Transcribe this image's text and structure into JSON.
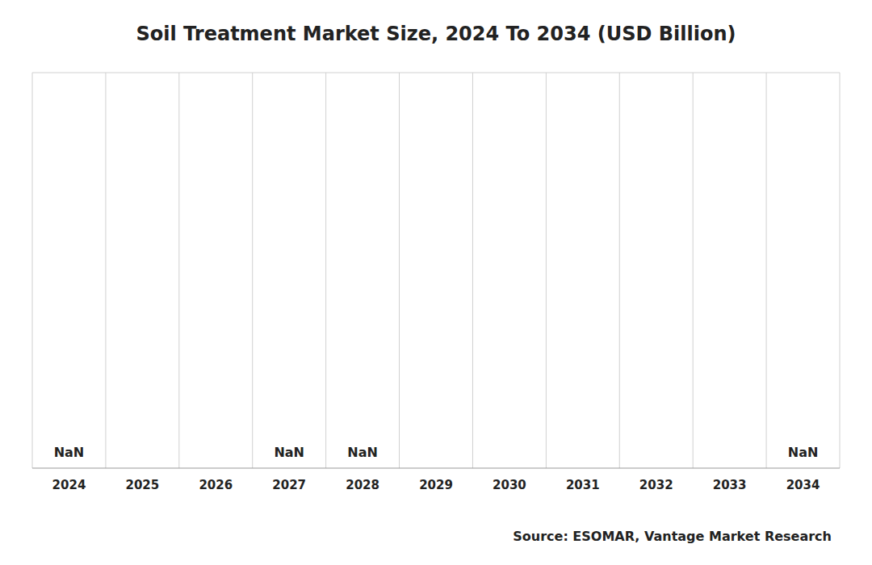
{
  "chart_data": {
    "type": "bar",
    "title": "Soil Treatment Market Size, 2024 To 2034 (USD Billion)",
    "categories": [
      2024,
      2025,
      2026,
      2027,
      2028,
      2029,
      2030,
      2031,
      2032,
      2033,
      2034
    ],
    "values": [
      null,
      null,
      null,
      null,
      null,
      null,
      null,
      null,
      null,
      null,
      null
    ],
    "value_labels": [
      "NaN",
      null,
      null,
      "NaN",
      "NaN",
      null,
      null,
      null,
      null,
      null,
      "NaN"
    ],
    "data_labels": true,
    "ylim": [
      0,
      1
    ],
    "yticks": [],
    "grid": true,
    "tick_labels": "x",
    "source": "Source: ESOMAR, Vantage Market Research"
  }
}
